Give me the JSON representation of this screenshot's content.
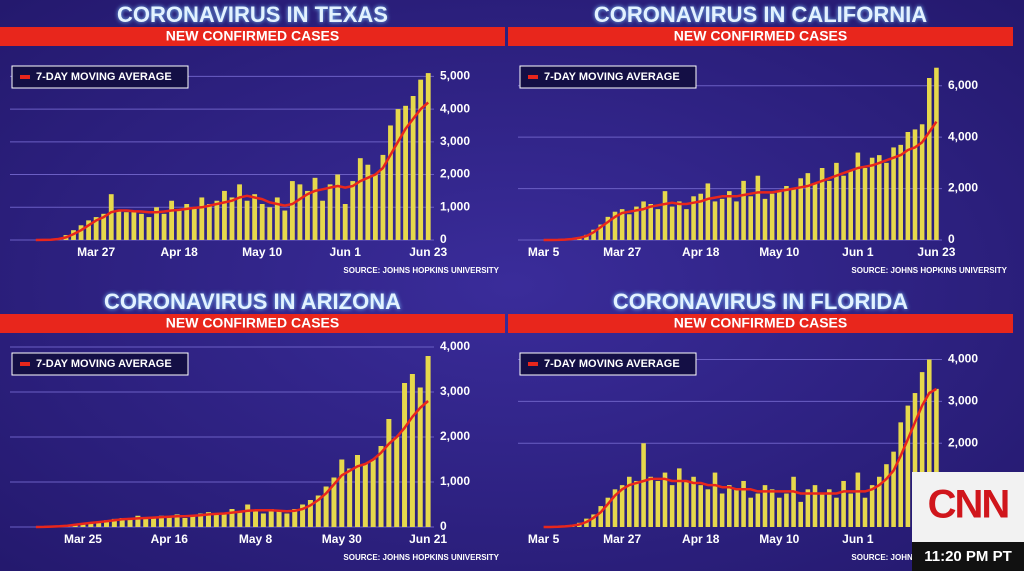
{
  "chart_data": [
    {
      "type": "bar",
      "title": "CORONAVIRUS IN TEXAS",
      "subtitle": "NEW CONFIRMED CASES",
      "source": "SOURCE: JOHNS HOPKINS UNIVERSITY",
      "categories": [
        null,
        null,
        null,
        null,
        null,
        null,
        null,
        null,
        "Mar 27",
        null,
        null,
        null,
        null,
        null,
        null,
        null,
        null,
        null,
        null,
        "Apr 18",
        null,
        null,
        null,
        null,
        null,
        null,
        null,
        null,
        null,
        null,
        "May 10",
        null,
        null,
        null,
        null,
        null,
        null,
        null,
        null,
        null,
        null,
        "Jun 1",
        null,
        null,
        null,
        null,
        null,
        null,
        null,
        null,
        null,
        null,
        "Jun 23"
      ],
      "series": [
        {
          "color": "#e6d84c",
          "values": [
            0,
            5,
            20,
            60,
            150,
            300,
            450,
            600,
            700,
            800,
            1400,
            900,
            850,
            900,
            800,
            700,
            1000,
            800,
            1200,
            900,
            1100,
            1000,
            1300,
            1100,
            1200,
            1500,
            1300,
            1700,
            1200,
            1400,
            1100,
            1000,
            1300,
            900,
            1800,
            1700,
            1500,
            1900,
            1200,
            1700,
            2000,
            1100,
            1800,
            2500,
            2300,
            2000,
            2600,
            3500,
            4000,
            4100,
            4400,
            4900,
            5100
          ]
        },
        {
          "name": "7-DAY MOVING AVERAGE",
          "type": "line",
          "color": "#e8261c",
          "values": [
            0,
            3,
            10,
            30,
            80,
            180,
            300,
            450,
            600,
            700,
            850,
            900,
            900,
            880,
            870,
            850,
            850,
            870,
            900,
            920,
            950,
            980,
            1000,
            1050,
            1100,
            1150,
            1200,
            1300,
            1350,
            1300,
            1250,
            1150,
            1100,
            1050,
            1100,
            1250,
            1400,
            1500,
            1550,
            1600,
            1650,
            1600,
            1650,
            1800,
            1900,
            2000,
            2200,
            2600,
            3000,
            3400,
            3700,
            4000,
            4200
          ]
        }
      ],
      "ylim": [
        0,
        5500
      ],
      "yticks": [
        0,
        {
          "value": 1000,
          "label": "1,000"
        },
        {
          "value": 2000,
          "label": "2,000"
        },
        {
          "value": 3000,
          "label": "3,000"
        },
        {
          "value": 4000,
          "label": "4,000"
        },
        {
          "value": 5000,
          "label": "5,000"
        }
      ],
      "grid": true
    },
    {
      "type": "bar",
      "title": "CORONAVIRUS IN CALIFORNIA",
      "subtitle": "NEW CONFIRMED CASES",
      "source": "SOURCE: JOHNS HOPKINS UNIVERSITY",
      "categories": [
        "Mar 5",
        null,
        null,
        null,
        null,
        null,
        null,
        null,
        null,
        null,
        null,
        "Mar 27",
        null,
        null,
        null,
        null,
        null,
        null,
        null,
        null,
        null,
        null,
        "Apr 18",
        null,
        null,
        null,
        null,
        null,
        null,
        null,
        null,
        null,
        null,
        "May 10",
        null,
        null,
        null,
        null,
        null,
        null,
        null,
        null,
        null,
        null,
        "Jun 1",
        null,
        null,
        null,
        null,
        null,
        null,
        null,
        null,
        null,
        null,
        "Jun 23"
      ],
      "series": [
        {
          "color": "#e6d84c",
          "values": [
            0,
            0,
            10,
            30,
            60,
            100,
            200,
            400,
            600,
            900,
            1100,
            1200,
            1000,
            1300,
            1500,
            1400,
            1200,
            1900,
            1300,
            1500,
            1200,
            1700,
            1800,
            2200,
            1500,
            1600,
            1900,
            1500,
            2300,
            1700,
            2500,
            1600,
            1800,
            1900,
            2100,
            2000,
            2400,
            2600,
            2200,
            2800,
            2300,
            3000,
            2500,
            2700,
            3400,
            2800,
            3200,
            3300,
            3000,
            3600,
            3700,
            4200,
            4300,
            4500,
            6300,
            6700
          ]
        },
        {
          "name": "7-DAY MOVING AVERAGE",
          "type": "line",
          "color": "#e8261c",
          "values": [
            0,
            0,
            5,
            15,
            40,
            80,
            150,
            300,
            500,
            700,
            900,
            1050,
            1100,
            1150,
            1200,
            1300,
            1350,
            1400,
            1450,
            1400,
            1400,
            1450,
            1500,
            1600,
            1650,
            1700,
            1700,
            1700,
            1750,
            1800,
            1850,
            1850,
            1850,
            1900,
            1950,
            2000,
            2050,
            2100,
            2200,
            2300,
            2400,
            2500,
            2600,
            2700,
            2800,
            2850,
            2900,
            3000,
            3100,
            3200,
            3300,
            3500,
            3600,
            3800,
            4200,
            4600
          ]
        }
      ],
      "ylim": [
        0,
        7000
      ],
      "yticks": [
        0,
        {
          "value": 2000,
          "label": "2,000"
        },
        {
          "value": 4000,
          "label": "4,000"
        },
        {
          "value": 6000,
          "label": "6,000"
        }
      ],
      "grid": true
    },
    {
      "type": "bar",
      "title": "CORONAVIRUS IN ARIZONA",
      "subtitle": "NEW CONFIRMED CASES",
      "source": "SOURCE: JOHNS HOPKINS UNIVERSITY",
      "categories": [
        null,
        null,
        null,
        null,
        null,
        null,
        "Mar 25",
        null,
        null,
        null,
        null,
        null,
        null,
        null,
        null,
        null,
        null,
        "Apr 16",
        null,
        null,
        null,
        null,
        null,
        null,
        null,
        null,
        null,
        null,
        "May 8",
        null,
        null,
        null,
        null,
        null,
        null,
        null,
        null,
        null,
        null,
        "May 30",
        null,
        null,
        null,
        null,
        null,
        null,
        null,
        null,
        null,
        null,
        "Jun 21"
      ],
      "series": [
        {
          "color": "#e6d84c",
          "values": [
            0,
            5,
            10,
            20,
            40,
            60,
            80,
            100,
            120,
            150,
            180,
            200,
            180,
            250,
            220,
            200,
            250,
            230,
            280,
            200,
            250,
            300,
            330,
            280,
            300,
            400,
            350,
            500,
            380,
            300,
            400,
            350,
            300,
            400,
            500,
            600,
            700,
            900,
            1100,
            1500,
            1300,
            1600,
            1400,
            1500,
            1800,
            2400,
            2000,
            3200,
            3400,
            3100,
            3800
          ]
        },
        {
          "name": "7-DAY MOVING AVERAGE",
          "type": "line",
          "color": "#e8261c",
          "values": [
            0,
            3,
            8,
            15,
            30,
            50,
            70,
            90,
            110,
            130,
            150,
            170,
            180,
            190,
            200,
            210,
            220,
            230,
            240,
            240,
            250,
            260,
            280,
            290,
            300,
            320,
            340,
            360,
            370,
            370,
            370,
            360,
            350,
            360,
            400,
            480,
            600,
            750,
            950,
            1150,
            1250,
            1350,
            1400,
            1500,
            1650,
            1850,
            2000,
            2200,
            2450,
            2650,
            2800
          ]
        }
      ],
      "ylim": [
        0,
        4000
      ],
      "yticks": [
        0,
        {
          "value": 1000,
          "label": "1,000"
        },
        {
          "value": 2000,
          "label": "2,000"
        },
        {
          "value": 3000,
          "label": "3,000"
        },
        {
          "value": 4000,
          "label": "4,000"
        }
      ],
      "grid": true
    },
    {
      "type": "bar",
      "title": "CORONAVIRUS IN FLORIDA",
      "subtitle": "NEW CONFIRMED CASES",
      "source": "SOURCE: JOHNS HOPKINS UNIVERSITY",
      "categories": [
        "Mar 5",
        null,
        null,
        null,
        null,
        null,
        null,
        null,
        null,
        null,
        null,
        "Mar 27",
        null,
        null,
        null,
        null,
        null,
        null,
        null,
        null,
        null,
        null,
        "Apr 18",
        null,
        null,
        null,
        null,
        null,
        null,
        null,
        null,
        null,
        null,
        "May 10",
        null,
        null,
        null,
        null,
        null,
        null,
        null,
        null,
        null,
        null,
        "Jun 1",
        null,
        null,
        null,
        null,
        null,
        null,
        null,
        null,
        null,
        null,
        null
      ],
      "series": [
        {
          "color": "#e6d84c",
          "values": [
            0,
            0,
            10,
            20,
            50,
            100,
            200,
            300,
            500,
            700,
            900,
            1000,
            1200,
            1100,
            2000,
            1200,
            1100,
            1300,
            1000,
            1400,
            1100,
            1200,
            1000,
            900,
            1300,
            800,
            1000,
            900,
            1100,
            700,
            800,
            1000,
            900,
            700,
            800,
            1200,
            600,
            900,
            1000,
            800,
            900,
            700,
            1100,
            800,
            1300,
            700,
            1000,
            1200,
            1500,
            1800,
            2500,
            2900,
            3200,
            3700,
            4000,
            3300
          ]
        },
        {
          "name": "7-DAY MOVING AVERAGE",
          "type": "line",
          "color": "#e8261c",
          "values": [
            0,
            0,
            5,
            15,
            30,
            60,
            120,
            220,
            350,
            550,
            750,
            900,
            1000,
            1050,
            1100,
            1150,
            1150,
            1150,
            1100,
            1100,
            1100,
            1050,
            1050,
            1000,
            1000,
            950,
            950,
            900,
            900,
            900,
            850,
            850,
            850,
            850,
            850,
            850,
            800,
            800,
            800,
            800,
            800,
            800,
            850,
            850,
            850,
            850,
            900,
            1000,
            1150,
            1350,
            1700,
            2100,
            2500,
            2900,
            3200,
            3300
          ]
        }
      ],
      "ylim": [
        0,
        4300
      ],
      "yticks": [
        {
          "value": 2000,
          "label": "2,000"
        },
        {
          "value": 3000,
          "label": "3,000"
        },
        {
          "value": 4000,
          "label": "4,000"
        }
      ],
      "grid": true
    }
  ],
  "overlay": {
    "logo": "CNN",
    "time": "11:20 PM PT"
  }
}
